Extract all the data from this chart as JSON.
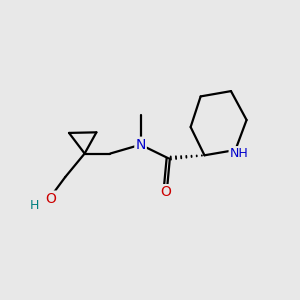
{
  "background_color": "#e8e8e8",
  "bond_color": "#000000",
  "atom_colors": {
    "N": "#0000cc",
    "O": "#cc0000",
    "H": "#008080",
    "C": "#000000"
  },
  "figsize": [
    3.0,
    3.0
  ],
  "dpi": 100
}
